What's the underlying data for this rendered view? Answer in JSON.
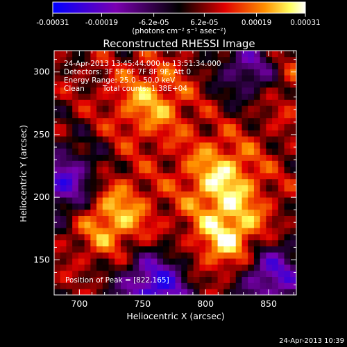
{
  "chart_data": {
    "type": "heatmap",
    "title": "Reconstructed RHESSI Image",
    "xlabel": "Heliocentric X (arcsec)",
    "ylabel": "Heliocentric Y (arcsec)",
    "xlim": [
      680,
      872
    ],
    "ylim": [
      122,
      317
    ],
    "xticks": [
      700,
      750,
      800,
      850
    ],
    "yticks": [
      150,
      200,
      250,
      300
    ],
    "colorbar": {
      "ticks": [
        "-0.00031",
        "-0.00019",
        "-6.2e-05",
        "6.2e-05",
        "0.00019",
        "0.00031"
      ],
      "tick_values": [
        -0.00031,
        -0.00019,
        -6.2e-05,
        6.2e-05,
        0.00019,
        0.00031
      ],
      "range": [
        -0.00031,
        0.00031
      ],
      "colormap": "blue-purple-black-red-orange-yellow-white",
      "unit_label": "(photons cm⁻² s⁻¹ asec⁻²)"
    },
    "info": {
      "time": "24-Apr-2013 13:45:44.000 to 13:51:34.000",
      "detectors": "Detectors: 3F 5F 6F 7F 8F 9F, Att 0",
      "energy": "Energy Range: 25.0 - 50.0 keV",
      "clean": "Clean",
      "counts": "Total counts: 1.38E+04"
    },
    "peak_label": "Position of Peak = [822,165]",
    "peak": [
      822,
      165
    ],
    "bright_sources": [
      {
        "x": 724,
        "y": 186,
        "level": 0.9
      },
      {
        "x": 812,
        "y": 216,
        "level": 0.85
      },
      {
        "x": 822,
        "y": 165,
        "level": 1.0
      },
      {
        "x": 756,
        "y": 276,
        "level": 0.7
      },
      {
        "x": 854,
        "y": 298,
        "level": 0.8
      }
    ],
    "negative_regions": [
      {
        "x": 840,
        "y": 302,
        "level": -0.9
      },
      {
        "x": 690,
        "y": 210,
        "level": -0.8
      },
      {
        "x": 760,
        "y": 128,
        "level": -0.9
      },
      {
        "x": 850,
        "y": 140,
        "level": -0.85
      }
    ]
  },
  "footer": {
    "timestamp": "24-Apr-2013 10:39"
  }
}
